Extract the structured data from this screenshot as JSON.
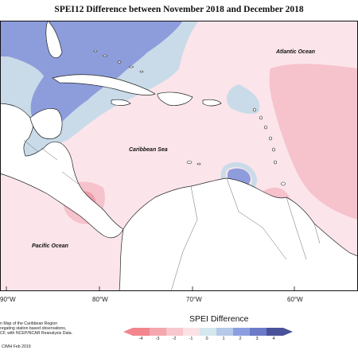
{
  "title": "SPEI12 Difference between November 2018 and December 2018",
  "places": {
    "atlantic": "Atlantic Ocean",
    "caribbean": "Caribbean Sea",
    "pacific": "Pacific Ocean"
  },
  "axis": {
    "lon_labels": [
      "90°W",
      "80°W",
      "70°W",
      "60°W"
    ]
  },
  "legend": {
    "title": "SPEI Difference",
    "ticks": [
      "-4",
      "-3",
      "-2",
      "-1",
      "0",
      "1",
      "2",
      "3",
      "4"
    ],
    "colors": [
      "#f2858d",
      "#f5a7ae",
      "#f8c7cd",
      "#fbe1e5",
      "#d4e6ee",
      "#b5c9e8",
      "#8c9edf",
      "#6b7bc7",
      "#4a5299"
    ]
  },
  "notes": [
    "n Map of the Caribbean Region",
    "regating station based observations,",
    "CF, with NCEP/NCAR Reanalysis Data."
  ],
  "credit": "CIMH Feb 2019",
  "colors": {
    "land": "#ffffff",
    "coast": "#222222",
    "blue_strong": "#8796dc",
    "blue_light": "#c3d6e6",
    "pink_light": "#f9dde3",
    "pink_mid": "#f4bcc6",
    "pink_strong": "#ee9aa6"
  }
}
